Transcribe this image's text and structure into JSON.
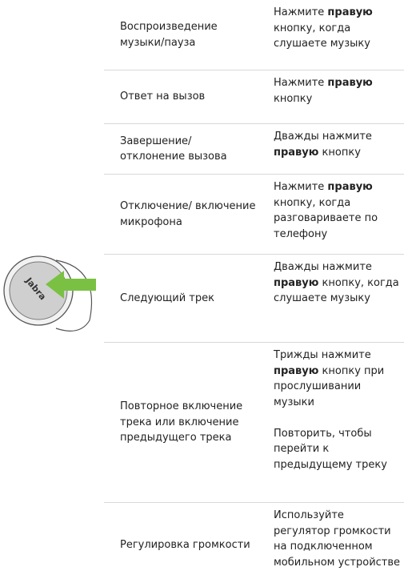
{
  "figure": {
    "earbud_label": "Jabra"
  },
  "table": {
    "rows": [
      {
        "action": "Воспроизведение музыки/пауза",
        "instruction": [
          [
            {
              "text": "Нажмите ",
              "bold": false
            },
            {
              "text": "правую",
              "bold": true
            },
            {
              "text": " кнопку, когда слушаете музыку",
              "bold": false
            }
          ]
        ]
      },
      {
        "action": "Ответ на вызов",
        "instruction": [
          [
            {
              "text": "Нажмите ",
              "bold": false
            },
            {
              "text": "правую",
              "bold": true
            },
            {
              "text": " кнопку",
              "bold": false
            }
          ]
        ]
      },
      {
        "action": "Завершение/ отклонение вызова",
        "instruction": [
          [
            {
              "text": "Дважды нажмите ",
              "bold": false
            },
            {
              "text": "правую",
              "bold": true
            },
            {
              "text": " кнопку",
              "bold": false
            }
          ]
        ]
      },
      {
        "action": "Отключение/ включение микрофона",
        "instruction": [
          [
            {
              "text": "Нажмите ",
              "bold": false
            },
            {
              "text": "правую",
              "bold": true
            },
            {
              "text": " кнопку, когда разговариваете по телефону",
              "bold": false
            }
          ]
        ]
      },
      {
        "action": "Следующий трек",
        "instruction": [
          [
            {
              "text": "Дважды нажмите ",
              "bold": false
            },
            {
              "text": "правую",
              "bold": true
            },
            {
              "text": " кнопку, когда слушаете музыку",
              "bold": false
            }
          ]
        ]
      },
      {
        "action": "Повторное включение трека или включение предыдущего трека",
        "instruction": [
          [
            {
              "text": "Трижды нажмите ",
              "bold": false
            },
            {
              "text": "правую",
              "bold": true
            },
            {
              "text": " кнопку при прослушивании музыки",
              "bold": false
            }
          ],
          [
            {
              "text": "Повторить, чтобы перейти к предыдущему треку",
              "bold": false
            }
          ]
        ]
      },
      {
        "action": "Регулировка громкости",
        "instruction": [
          [
            {
              "text": "Используйте регулятор громкости на подключенном мобильном устройстве",
              "bold": false
            }
          ]
        ]
      }
    ]
  }
}
